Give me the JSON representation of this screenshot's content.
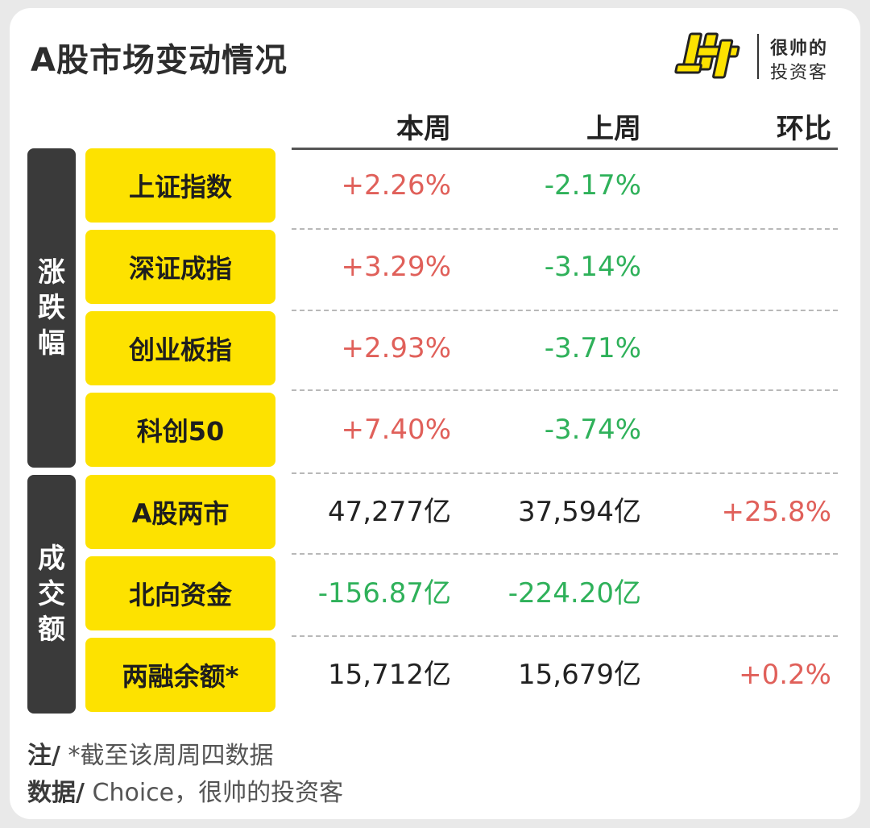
{
  "title": "A股市场变动情况",
  "logo": {
    "line1": "很帅的",
    "line2": "投资客",
    "mark": "帅"
  },
  "columns": [
    "本周",
    "上周",
    "环比"
  ],
  "groups": [
    {
      "label": [
        "涨",
        "跌",
        "幅"
      ]
    },
    {
      "label": [
        "成",
        "交",
        "额"
      ]
    }
  ],
  "rows": [
    {
      "label": "上证指数",
      "this_week": "+2.26%",
      "last_week": "-2.17%",
      "change": ""
    },
    {
      "label": "深证成指",
      "this_week": "+3.29%",
      "last_week": "-3.14%",
      "change": ""
    },
    {
      "label": "创业板指",
      "this_week": "+2.93%",
      "last_week": "-3.71%",
      "change": ""
    },
    {
      "label": "科创50",
      "this_week": "+7.40%",
      "last_week": "-3.74%",
      "change": ""
    },
    {
      "label": "A股两市",
      "this_week": "47,277亿",
      "last_week": "37,594亿",
      "change": "+25.8%"
    },
    {
      "label": "北向资金",
      "this_week": "-156.87亿",
      "last_week": "-224.20亿",
      "change": ""
    },
    {
      "label": "两融余额*",
      "this_week": "15,712亿",
      "last_week": "15,679亿",
      "change": "+0.2%"
    }
  ],
  "notes": {
    "note_prefix": "注/",
    "note_text": " *截至该周周四数据",
    "source_prefix": "数据/",
    "source_text": " Choice，很帅的投资客"
  },
  "colors": {
    "accent": "#fde200",
    "positive": "#e0605a",
    "negative": "#2fb15a",
    "group_bg": "#3a3a3a"
  }
}
